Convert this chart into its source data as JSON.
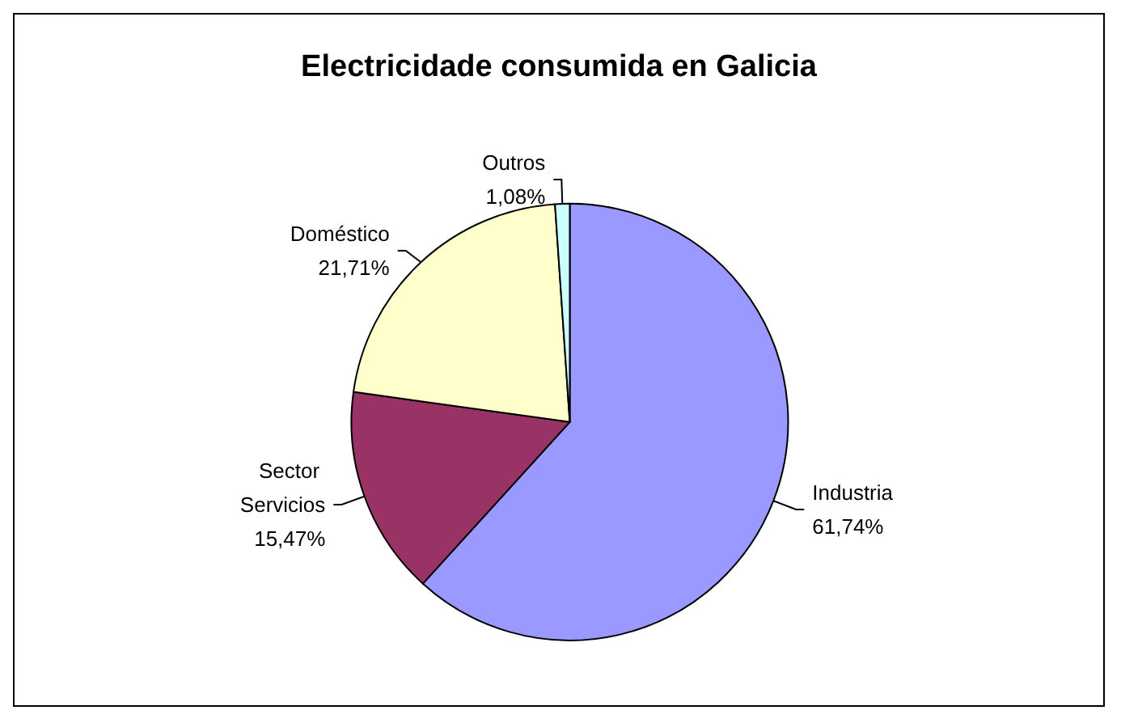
{
  "chart_data": {
    "type": "pie",
    "title": "Electricidade consumida en Galicia",
    "categories": [
      "Industria",
      "Sector Servicios",
      "Doméstico",
      "Outros"
    ],
    "values": [
      61.74,
      15.47,
      21.71,
      1.08
    ],
    "colors": [
      "#9999ff",
      "#993366",
      "#ffffcc",
      "#ccffff"
    ],
    "value_labels": [
      "61,74%",
      "15,47%",
      "21,71%",
      "1,08%"
    ],
    "legend": false
  }
}
